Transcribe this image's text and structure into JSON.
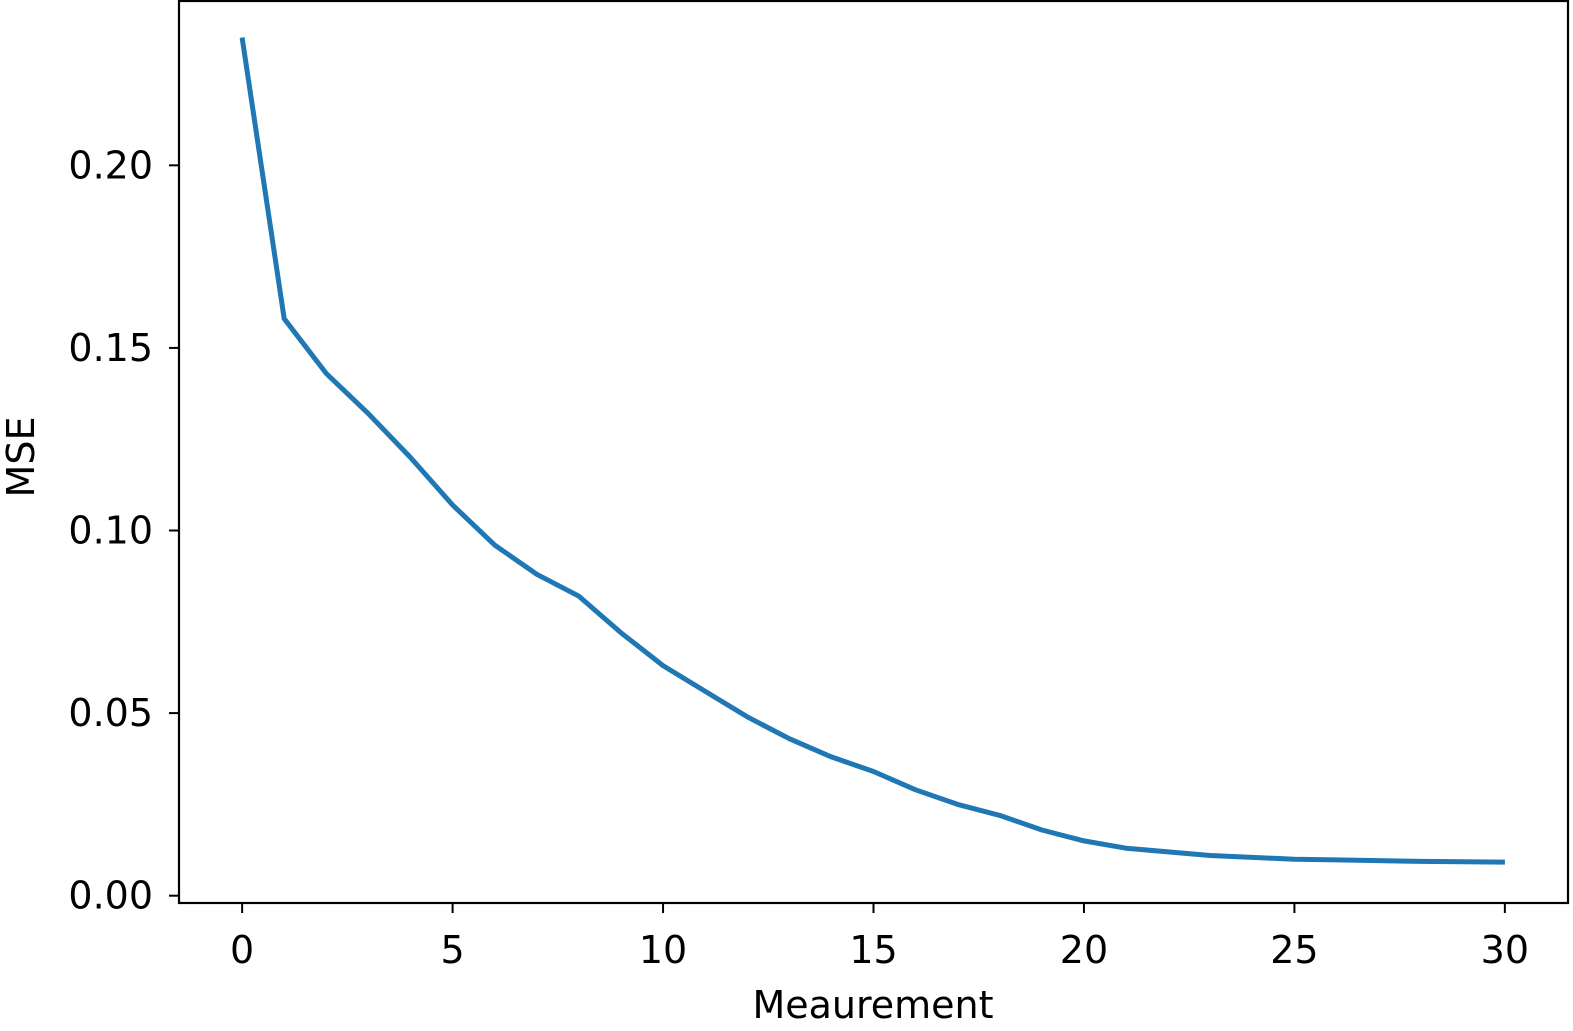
{
  "chart_data": {
    "type": "line",
    "title": "",
    "xlabel": "Meaurement",
    "ylabel": "MSE",
    "xlim": [
      -1.5,
      31.5
    ],
    "ylim": [
      -0.002,
      0.245
    ],
    "grid": false,
    "xticks": [
      0,
      5,
      10,
      15,
      20,
      25,
      30
    ],
    "xtick_labels": [
      "0",
      "5",
      "10",
      "15",
      "20",
      "25",
      "30"
    ],
    "yticks": [
      0.0,
      0.05,
      0.1,
      0.15,
      0.2
    ],
    "ytick_labels": [
      "0.00",
      "0.05",
      "0.10",
      "0.15",
      "0.20"
    ],
    "series": [
      {
        "color": "#1f77b4",
        "x": [
          0,
          1,
          2,
          3,
          4,
          5,
          6,
          7,
          8,
          9,
          10,
          11,
          12,
          13,
          14,
          15,
          16,
          17,
          18,
          19,
          20,
          21,
          22,
          23,
          24,
          25,
          26,
          27,
          28,
          29,
          30
        ],
        "y": [
          0.235,
          0.158,
          0.143,
          0.132,
          0.12,
          0.107,
          0.096,
          0.088,
          0.082,
          0.072,
          0.063,
          0.056,
          0.049,
          0.043,
          0.038,
          0.034,
          0.029,
          0.025,
          0.022,
          0.018,
          0.015,
          0.013,
          0.012,
          0.011,
          0.0105,
          0.01,
          0.0098,
          0.0096,
          0.0094,
          0.0093,
          0.0092
        ]
      }
    ]
  }
}
